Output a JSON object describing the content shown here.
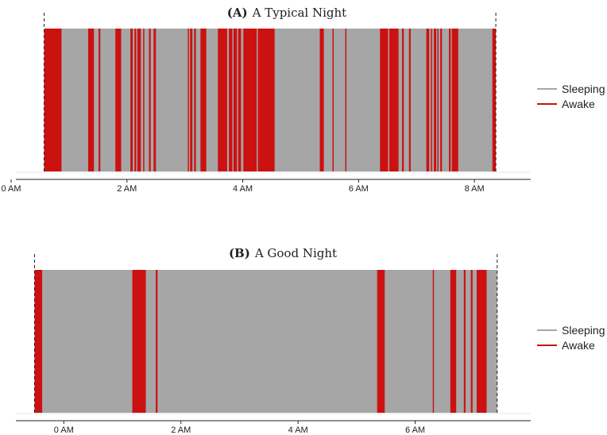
{
  "legend": {
    "items": [
      {
        "label": "Sleeping",
        "color": "#a6a6a6"
      },
      {
        "label": "Awake",
        "color": "#cc1111"
      }
    ]
  },
  "chart_data": [
    {
      "type": "area",
      "panel_label": "(A)",
      "title": "A Typical Night",
      "x_unit": "hours",
      "xlim": [
        0,
        9.0
      ],
      "x_ticks": [
        0,
        2,
        4,
        6,
        8
      ],
      "x_tick_labels": [
        "0 AM",
        "2 AM",
        "4 AM",
        "6 AM",
        "8 AM"
      ],
      "boundaries": [
        0.57,
        8.37
      ],
      "awake_intervals": [
        [
          0.57,
          0.87
        ],
        [
          1.33,
          1.43
        ],
        [
          1.51,
          1.54
        ],
        [
          1.8,
          1.9
        ],
        [
          2.06,
          2.1
        ],
        [
          2.13,
          2.16
        ],
        [
          2.18,
          2.24
        ],
        [
          2.28,
          2.3
        ],
        [
          2.38,
          2.41
        ],
        [
          2.46,
          2.5
        ],
        [
          3.05,
          3.07
        ],
        [
          3.09,
          3.13
        ],
        [
          3.16,
          3.19
        ],
        [
          3.27,
          3.37
        ],
        [
          3.57,
          3.73
        ],
        [
          3.76,
          3.82
        ],
        [
          3.84,
          3.9
        ],
        [
          3.92,
          3.97
        ],
        [
          4.01,
          4.24
        ],
        [
          4.26,
          4.55
        ],
        [
          5.33,
          5.4
        ],
        [
          5.55,
          5.57
        ],
        [
          5.77,
          5.79
        ],
        [
          6.37,
          6.51
        ],
        [
          6.53,
          6.69
        ],
        [
          6.75,
          6.78
        ],
        [
          6.87,
          6.9
        ],
        [
          7.17,
          7.22
        ],
        [
          7.25,
          7.27
        ],
        [
          7.3,
          7.34
        ],
        [
          7.36,
          7.38
        ],
        [
          7.41,
          7.44
        ],
        [
          7.56,
          7.59
        ],
        [
          7.61,
          7.72
        ],
        [
          8.31,
          8.37
        ]
      ]
    },
    {
      "type": "area",
      "panel_label": "(B)",
      "title": "A Good Night",
      "x_unit": "hours",
      "xlim": [
        -0.9,
        8.0
      ],
      "x_ticks": [
        0,
        2,
        4,
        6
      ],
      "x_tick_labels": [
        "0 AM",
        "2 AM",
        "4 AM",
        "6 AM"
      ],
      "boundaries": [
        -0.5,
        7.4
      ],
      "awake_intervals": [
        [
          -0.5,
          -0.37
        ],
        [
          1.17,
          1.4
        ],
        [
          1.57,
          1.6
        ],
        [
          5.35,
          5.48
        ],
        [
          6.3,
          6.32
        ],
        [
          6.6,
          6.7
        ],
        [
          6.83,
          6.86
        ],
        [
          6.95,
          6.98
        ],
        [
          7.05,
          7.22
        ]
      ]
    }
  ]
}
